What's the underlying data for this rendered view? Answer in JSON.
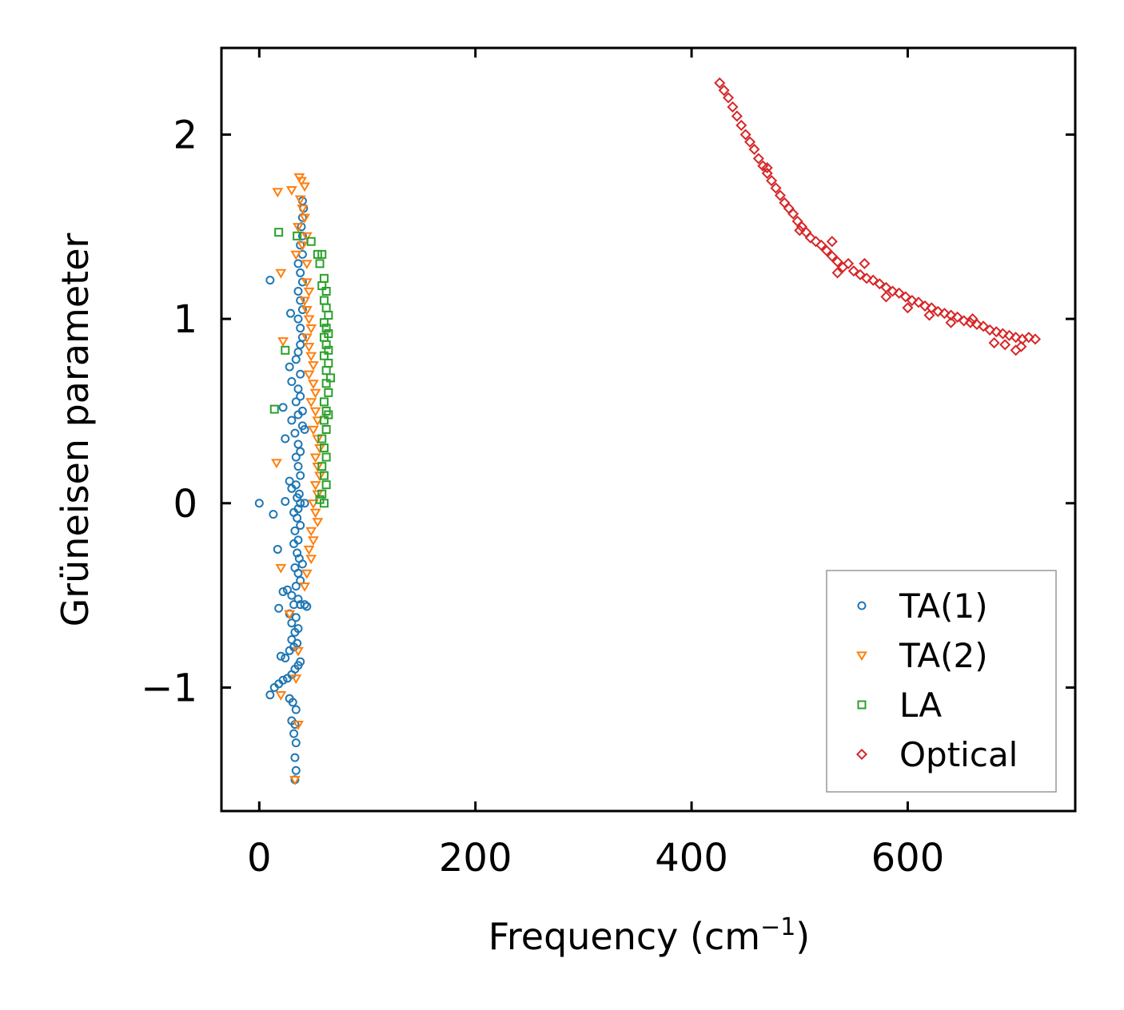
{
  "chart_data": {
    "type": "scatter",
    "title": "",
    "xlabel": "Frequency (cm",
    "xlabel_sup": "−1",
    "xlabel_close": ")",
    "ylabel": "Grüneisen parameter",
    "xlim": [
      -35,
      755
    ],
    "ylim": [
      -1.67,
      2.47
    ],
    "xticks": [
      0,
      200,
      400,
      600
    ],
    "xtick_labels": [
      "0",
      "200",
      "400",
      "600"
    ],
    "yticks": [
      -1,
      0,
      1,
      2
    ],
    "ytick_labels": [
      "−1",
      "0",
      "1",
      "2"
    ],
    "grid": false,
    "legend_position": "bottom-right",
    "series": [
      {
        "name": "TA(1)",
        "marker": "circle",
        "color": "#1f77b4",
        "points": [
          [
            33,
            -1.5
          ],
          [
            34,
            -1.45
          ],
          [
            33,
            -1.38
          ],
          [
            34,
            -1.3
          ],
          [
            32,
            -1.25
          ],
          [
            33,
            -1.2
          ],
          [
            30,
            -1.18
          ],
          [
            34,
            -1.12
          ],
          [
            31,
            -1.08
          ],
          [
            28,
            -1.06
          ],
          [
            10,
            -1.04
          ],
          [
            14,
            -1.0
          ],
          [
            18,
            -0.98
          ],
          [
            22,
            -0.96
          ],
          [
            26,
            -0.95
          ],
          [
            30,
            -0.93
          ],
          [
            33,
            -0.9
          ],
          [
            36,
            -0.88
          ],
          [
            38,
            -0.86
          ],
          [
            24,
            -0.84
          ],
          [
            20,
            -0.83
          ],
          [
            28,
            -0.8
          ],
          [
            32,
            -0.78
          ],
          [
            35,
            -0.76
          ],
          [
            30,
            -0.74
          ],
          [
            33,
            -0.7
          ],
          [
            36,
            -0.68
          ],
          [
            30,
            -0.65
          ],
          [
            34,
            -0.62
          ],
          [
            28,
            -0.6
          ],
          [
            18,
            -0.57
          ],
          [
            32,
            -0.55
          ],
          [
            38,
            -0.55
          ],
          [
            42,
            -0.55
          ],
          [
            44,
            -0.56
          ],
          [
            36,
            -0.52
          ],
          [
            30,
            -0.5
          ],
          [
            22,
            -0.48
          ],
          [
            26,
            -0.47
          ],
          [
            34,
            -0.45
          ],
          [
            38,
            -0.42
          ],
          [
            36,
            -0.38
          ],
          [
            33,
            -0.35
          ],
          [
            40,
            -0.33
          ],
          [
            37,
            -0.3
          ],
          [
            35,
            -0.27
          ],
          [
            17,
            -0.25
          ],
          [
            32,
            -0.22
          ],
          [
            36,
            -0.2
          ],
          [
            33,
            -0.15
          ],
          [
            38,
            -0.12
          ],
          [
            35,
            -0.08
          ],
          [
            13,
            -0.06
          ],
          [
            32,
            -0.05
          ],
          [
            36,
            -0.03
          ],
          [
            38,
            0.0
          ],
          [
            24,
            0.01
          ],
          [
            35,
            0.03
          ],
          [
            37,
            0.05
          ],
          [
            30,
            0.08
          ],
          [
            34,
            0.1
          ],
          [
            28,
            0.12
          ],
          [
            38,
            0.15
          ],
          [
            36,
            0.2
          ],
          [
            34,
            0.25
          ],
          [
            38,
            0.28
          ],
          [
            36,
            0.32
          ],
          [
            24,
            0.35
          ],
          [
            33,
            0.38
          ],
          [
            40,
            0.42
          ],
          [
            30,
            0.45
          ],
          [
            36,
            0.48
          ],
          [
            22,
            0.52
          ],
          [
            34,
            0.55
          ],
          [
            38,
            0.58
          ],
          [
            36,
            0.62
          ],
          [
            30,
            0.66
          ],
          [
            38,
            0.7
          ],
          [
            28,
            0.74
          ],
          [
            34,
            0.78
          ],
          [
            36,
            0.82
          ],
          [
            38,
            0.86
          ],
          [
            40,
            0.9
          ],
          [
            38,
            0.95
          ],
          [
            36,
            1.0
          ],
          [
            40,
            1.05
          ],
          [
            38,
            1.1
          ],
          [
            36,
            1.15
          ],
          [
            40,
            1.2
          ],
          [
            38,
            1.25
          ],
          [
            36,
            1.3
          ],
          [
            40,
            1.35
          ],
          [
            38,
            1.4
          ],
          [
            40,
            1.45
          ],
          [
            39,
            1.5
          ],
          [
            40,
            1.55
          ],
          [
            41,
            1.6
          ],
          [
            40,
            1.64
          ],
          [
            10,
            1.21
          ],
          [
            0,
            0.0
          ],
          [
            29,
            1.03
          ],
          [
            42,
            0.4
          ],
          [
            42,
            0.0
          ],
          [
            40,
            0.5
          ]
        ]
      },
      {
        "name": "TA(2)",
        "marker": "triangle",
        "color": "#ff7f0e",
        "points": [
          [
            37,
            1.77
          ],
          [
            39,
            1.75
          ],
          [
            42,
            1.72
          ],
          [
            30,
            1.7
          ],
          [
            17,
            1.69
          ],
          [
            38,
            1.65
          ],
          [
            40,
            1.6
          ],
          [
            42,
            1.55
          ],
          [
            36,
            1.5
          ],
          [
            44,
            1.45
          ],
          [
            40,
            1.4
          ],
          [
            34,
            1.35
          ],
          [
            44,
            1.3
          ],
          [
            20,
            1.25
          ],
          [
            44,
            1.2
          ],
          [
            46,
            1.15
          ],
          [
            42,
            1.1
          ],
          [
            44,
            1.05
          ],
          [
            46,
            1.0
          ],
          [
            48,
            0.95
          ],
          [
            44,
            0.9
          ],
          [
            22,
            0.88
          ],
          [
            46,
            0.85
          ],
          [
            48,
            0.8
          ],
          [
            50,
            0.75
          ],
          [
            46,
            0.7
          ],
          [
            50,
            0.65
          ],
          [
            52,
            0.6
          ],
          [
            48,
            0.55
          ],
          [
            52,
            0.5
          ],
          [
            54,
            0.45
          ],
          [
            50,
            0.4
          ],
          [
            54,
            0.35
          ],
          [
            56,
            0.3
          ],
          [
            52,
            0.25
          ],
          [
            16,
            0.22
          ],
          [
            54,
            0.2
          ],
          [
            56,
            0.15
          ],
          [
            52,
            0.1
          ],
          [
            54,
            0.05
          ],
          [
            50,
            0.0
          ],
          [
            52,
            -0.05
          ],
          [
            54,
            -0.1
          ],
          [
            48,
            -0.15
          ],
          [
            50,
            -0.2
          ],
          [
            46,
            -0.25
          ],
          [
            48,
            -0.3
          ],
          [
            20,
            -0.35
          ],
          [
            44,
            -0.38
          ],
          [
            42,
            -0.45
          ],
          [
            28,
            -0.6
          ],
          [
            36,
            -0.8
          ],
          [
            34,
            -0.95
          ],
          [
            20,
            -1.04
          ],
          [
            36,
            -1.2
          ],
          [
            33,
            -1.5
          ]
        ]
      },
      {
        "name": "LA",
        "marker": "square",
        "color": "#2ca02c",
        "points": [
          [
            18,
            1.47
          ],
          [
            35,
            1.45
          ],
          [
            48,
            1.42
          ],
          [
            54,
            1.35
          ],
          [
            58,
            1.35
          ],
          [
            56,
            1.3
          ],
          [
            60,
            1.22
          ],
          [
            58,
            1.18
          ],
          [
            62,
            1.15
          ],
          [
            60,
            1.1
          ],
          [
            62,
            1.06
          ],
          [
            64,
            1.02
          ],
          [
            60,
            0.98
          ],
          [
            62,
            0.95
          ],
          [
            64,
            0.92
          ],
          [
            60,
            0.9
          ],
          [
            62,
            0.86
          ],
          [
            64,
            0.83
          ],
          [
            24,
            0.83
          ],
          [
            60,
            0.8
          ],
          [
            64,
            0.76
          ],
          [
            62,
            0.72
          ],
          [
            66,
            0.68
          ],
          [
            62,
            0.65
          ],
          [
            64,
            0.6
          ],
          [
            60,
            0.55
          ],
          [
            62,
            0.5
          ],
          [
            14,
            0.51
          ],
          [
            64,
            0.48
          ],
          [
            60,
            0.45
          ],
          [
            62,
            0.4
          ],
          [
            58,
            0.35
          ],
          [
            60,
            0.3
          ],
          [
            62,
            0.25
          ],
          [
            58,
            0.2
          ],
          [
            60,
            0.15
          ],
          [
            62,
            0.1
          ],
          [
            58,
            0.05
          ],
          [
            56,
            0.02
          ],
          [
            60,
            0.0
          ]
        ]
      },
      {
        "name": "Optical",
        "marker": "diamond",
        "color": "#d62728",
        "points": [
          [
            426,
            2.28
          ],
          [
            430,
            2.24
          ],
          [
            434,
            2.2
          ],
          [
            438,
            2.15
          ],
          [
            442,
            2.1
          ],
          [
            446,
            2.05
          ],
          [
            450,
            2.0
          ],
          [
            454,
            1.96
          ],
          [
            458,
            1.92
          ],
          [
            462,
            1.87
          ],
          [
            466,
            1.83
          ],
          [
            470,
            1.79
          ],
          [
            474,
            1.75
          ],
          [
            478,
            1.71
          ],
          [
            482,
            1.67
          ],
          [
            486,
            1.63
          ],
          [
            490,
            1.6
          ],
          [
            494,
            1.57
          ],
          [
            498,
            1.53
          ],
          [
            502,
            1.5
          ],
          [
            506,
            1.47
          ],
          [
            510,
            1.44
          ],
          [
            515,
            1.42
          ],
          [
            520,
            1.4
          ],
          [
            525,
            1.37
          ],
          [
            530,
            1.34
          ],
          [
            535,
            1.31
          ],
          [
            540,
            1.28
          ],
          [
            545,
            1.3
          ],
          [
            550,
            1.26
          ],
          [
            556,
            1.24
          ],
          [
            562,
            1.22
          ],
          [
            568,
            1.21
          ],
          [
            574,
            1.19
          ],
          [
            580,
            1.17
          ],
          [
            586,
            1.15
          ],
          [
            592,
            1.14
          ],
          [
            598,
            1.12
          ],
          [
            604,
            1.1
          ],
          [
            610,
            1.09
          ],
          [
            616,
            1.07
          ],
          [
            622,
            1.06
          ],
          [
            628,
            1.04
          ],
          [
            634,
            1.03
          ],
          [
            640,
            1.02
          ],
          [
            646,
            1.01
          ],
          [
            652,
            0.99
          ],
          [
            658,
            0.98
          ],
          [
            664,
            0.97
          ],
          [
            670,
            0.96
          ],
          [
            676,
            0.94
          ],
          [
            682,
            0.93
          ],
          [
            688,
            0.92
          ],
          [
            694,
            0.91
          ],
          [
            700,
            0.9
          ],
          [
            706,
            0.89
          ],
          [
            712,
            0.9
          ],
          [
            718,
            0.89
          ],
          [
            535,
            1.25
          ],
          [
            560,
            1.3
          ],
          [
            600,
            1.06
          ],
          [
            640,
            0.98
          ],
          [
            680,
            0.87
          ],
          [
            700,
            0.83
          ],
          [
            470,
            1.82
          ],
          [
            500,
            1.48
          ],
          [
            530,
            1.42
          ],
          [
            580,
            1.12
          ],
          [
            620,
            1.02
          ],
          [
            660,
            1.0
          ],
          [
            690,
            0.86
          ],
          [
            705,
            0.85
          ]
        ]
      }
    ]
  }
}
